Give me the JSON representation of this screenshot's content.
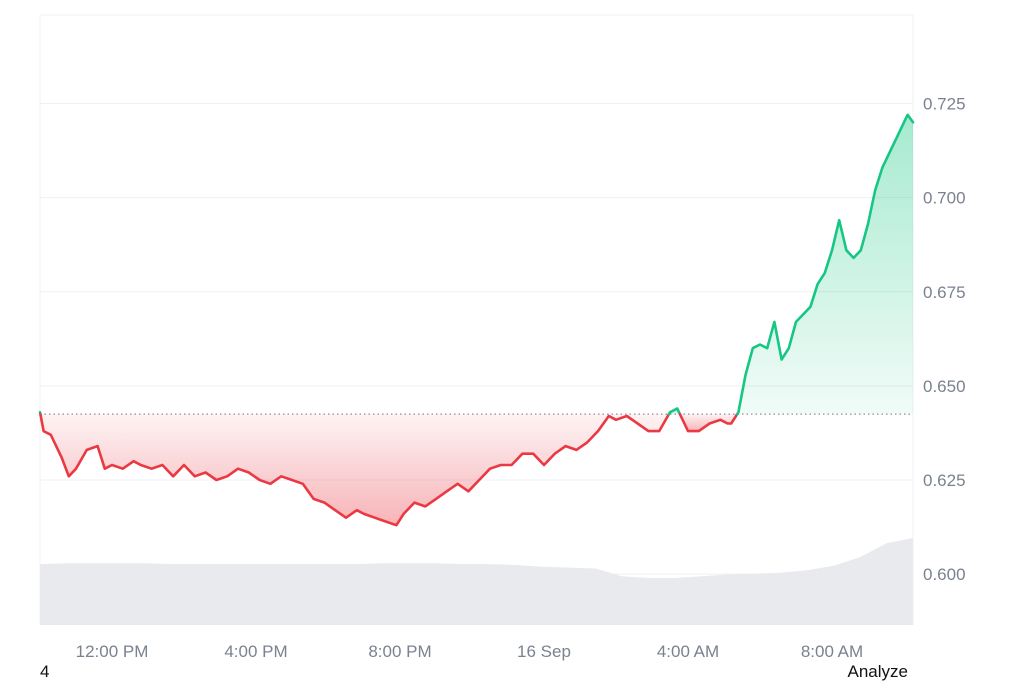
{
  "footer": {
    "left_text": "4",
    "right_text": "Analyze"
  },
  "colors": {
    "up": "#16c784",
    "down": "#ea3943",
    "grid": "#eef0f3",
    "volume": "#e8eaee",
    "baseline": "#8a8f98"
  },
  "chart_data": {
    "type": "area",
    "title": "",
    "xlabel": "",
    "ylabel": "",
    "baseline": 0.6425,
    "ylim": [
      0.5865,
      0.7485
    ],
    "yticks": [
      0.6,
      0.625,
      0.65,
      0.675,
      0.7,
      0.725
    ],
    "ytick_labels": [
      "0.600",
      "0.625",
      "0.650",
      "0.675",
      "0.700",
      "0.725"
    ],
    "xlim_hours": [
      10.0,
      34.25
    ],
    "xticks": [
      {
        "hour": 12,
        "label": "12:00 PM"
      },
      {
        "hour": 16,
        "label": "4:00 PM"
      },
      {
        "hour": 20,
        "label": "8:00 PM"
      },
      {
        "hour": 24,
        "label": "16 Sep"
      },
      {
        "hour": 28,
        "label": "4:00 AM"
      },
      {
        "hour": 32,
        "label": "8:00 AM"
      }
    ],
    "grid": true,
    "series": [
      {
        "x": [
          10.0,
          10.1,
          10.3,
          10.6,
          10.8,
          11.0,
          11.3,
          11.6,
          11.8,
          12.0,
          12.3,
          12.6,
          12.8,
          13.1,
          13.4,
          13.7,
          14.0,
          14.3,
          14.6,
          14.9,
          15.2,
          15.5,
          15.8,
          16.1,
          16.4,
          16.7,
          17.0,
          17.3,
          17.6,
          17.9,
          18.2,
          18.5,
          18.8,
          19.0,
          19.3,
          19.6,
          19.9,
          20.1,
          20.4,
          20.7,
          21.0,
          21.3,
          21.6,
          21.9,
          22.2,
          22.5,
          22.8,
          23.1,
          23.4,
          23.7,
          24.0,
          24.3,
          24.6,
          24.9,
          25.2,
          25.5,
          25.8,
          26.0,
          26.3,
          26.6,
          26.9,
          27.2,
          27.5,
          27.7,
          28.0,
          28.3,
          28.6,
          28.9,
          29.1,
          29.2,
          29.4,
          29.6,
          29.8,
          30.0,
          30.2,
          30.4,
          30.6,
          30.8,
          31.0,
          31.2,
          31.4,
          31.6,
          31.8,
          32.0,
          32.2,
          32.4,
          32.6,
          32.8,
          33.0,
          33.2,
          33.4,
          33.6,
          33.8,
          34.0,
          34.1,
          34.25
        ],
        "values": [
          0.643,
          0.638,
          0.637,
          0.631,
          0.626,
          0.628,
          0.633,
          0.634,
          0.628,
          0.629,
          0.628,
          0.63,
          0.629,
          0.628,
          0.629,
          0.626,
          0.629,
          0.626,
          0.627,
          0.625,
          0.626,
          0.628,
          0.627,
          0.625,
          0.624,
          0.626,
          0.625,
          0.624,
          0.62,
          0.619,
          0.617,
          0.615,
          0.617,
          0.616,
          0.615,
          0.614,
          0.613,
          0.616,
          0.619,
          0.618,
          0.62,
          0.622,
          0.624,
          0.622,
          0.625,
          0.628,
          0.629,
          0.629,
          0.632,
          0.632,
          0.629,
          0.632,
          0.634,
          0.633,
          0.635,
          0.638,
          0.642,
          0.641,
          0.642,
          0.64,
          0.638,
          0.638,
          0.643,
          0.644,
          0.638,
          0.638,
          0.64,
          0.641,
          0.64,
          0.64,
          0.643,
          0.653,
          0.66,
          0.661,
          0.66,
          0.667,
          0.657,
          0.66,
          0.667,
          0.669,
          0.671,
          0.677,
          0.68,
          0.686,
          0.694,
          0.686,
          0.684,
          0.686,
          0.693,
          0.702,
          0.708,
          0.712,
          0.716,
          0.72,
          0.722,
          0.72
        ]
      }
    ],
    "volume_relative": [
      0.7,
      0.71,
      0.71,
      0.71,
      0.71,
      0.7,
      0.7,
      0.7,
      0.7,
      0.7,
      0.7,
      0.7,
      0.7,
      0.71,
      0.71,
      0.71,
      0.7,
      0.7,
      0.69,
      0.67,
      0.66,
      0.65,
      0.56,
      0.54,
      0.54,
      0.56,
      0.58,
      0.59,
      0.6,
      0.63,
      0.68,
      0.78,
      0.94,
      1.0
    ]
  }
}
